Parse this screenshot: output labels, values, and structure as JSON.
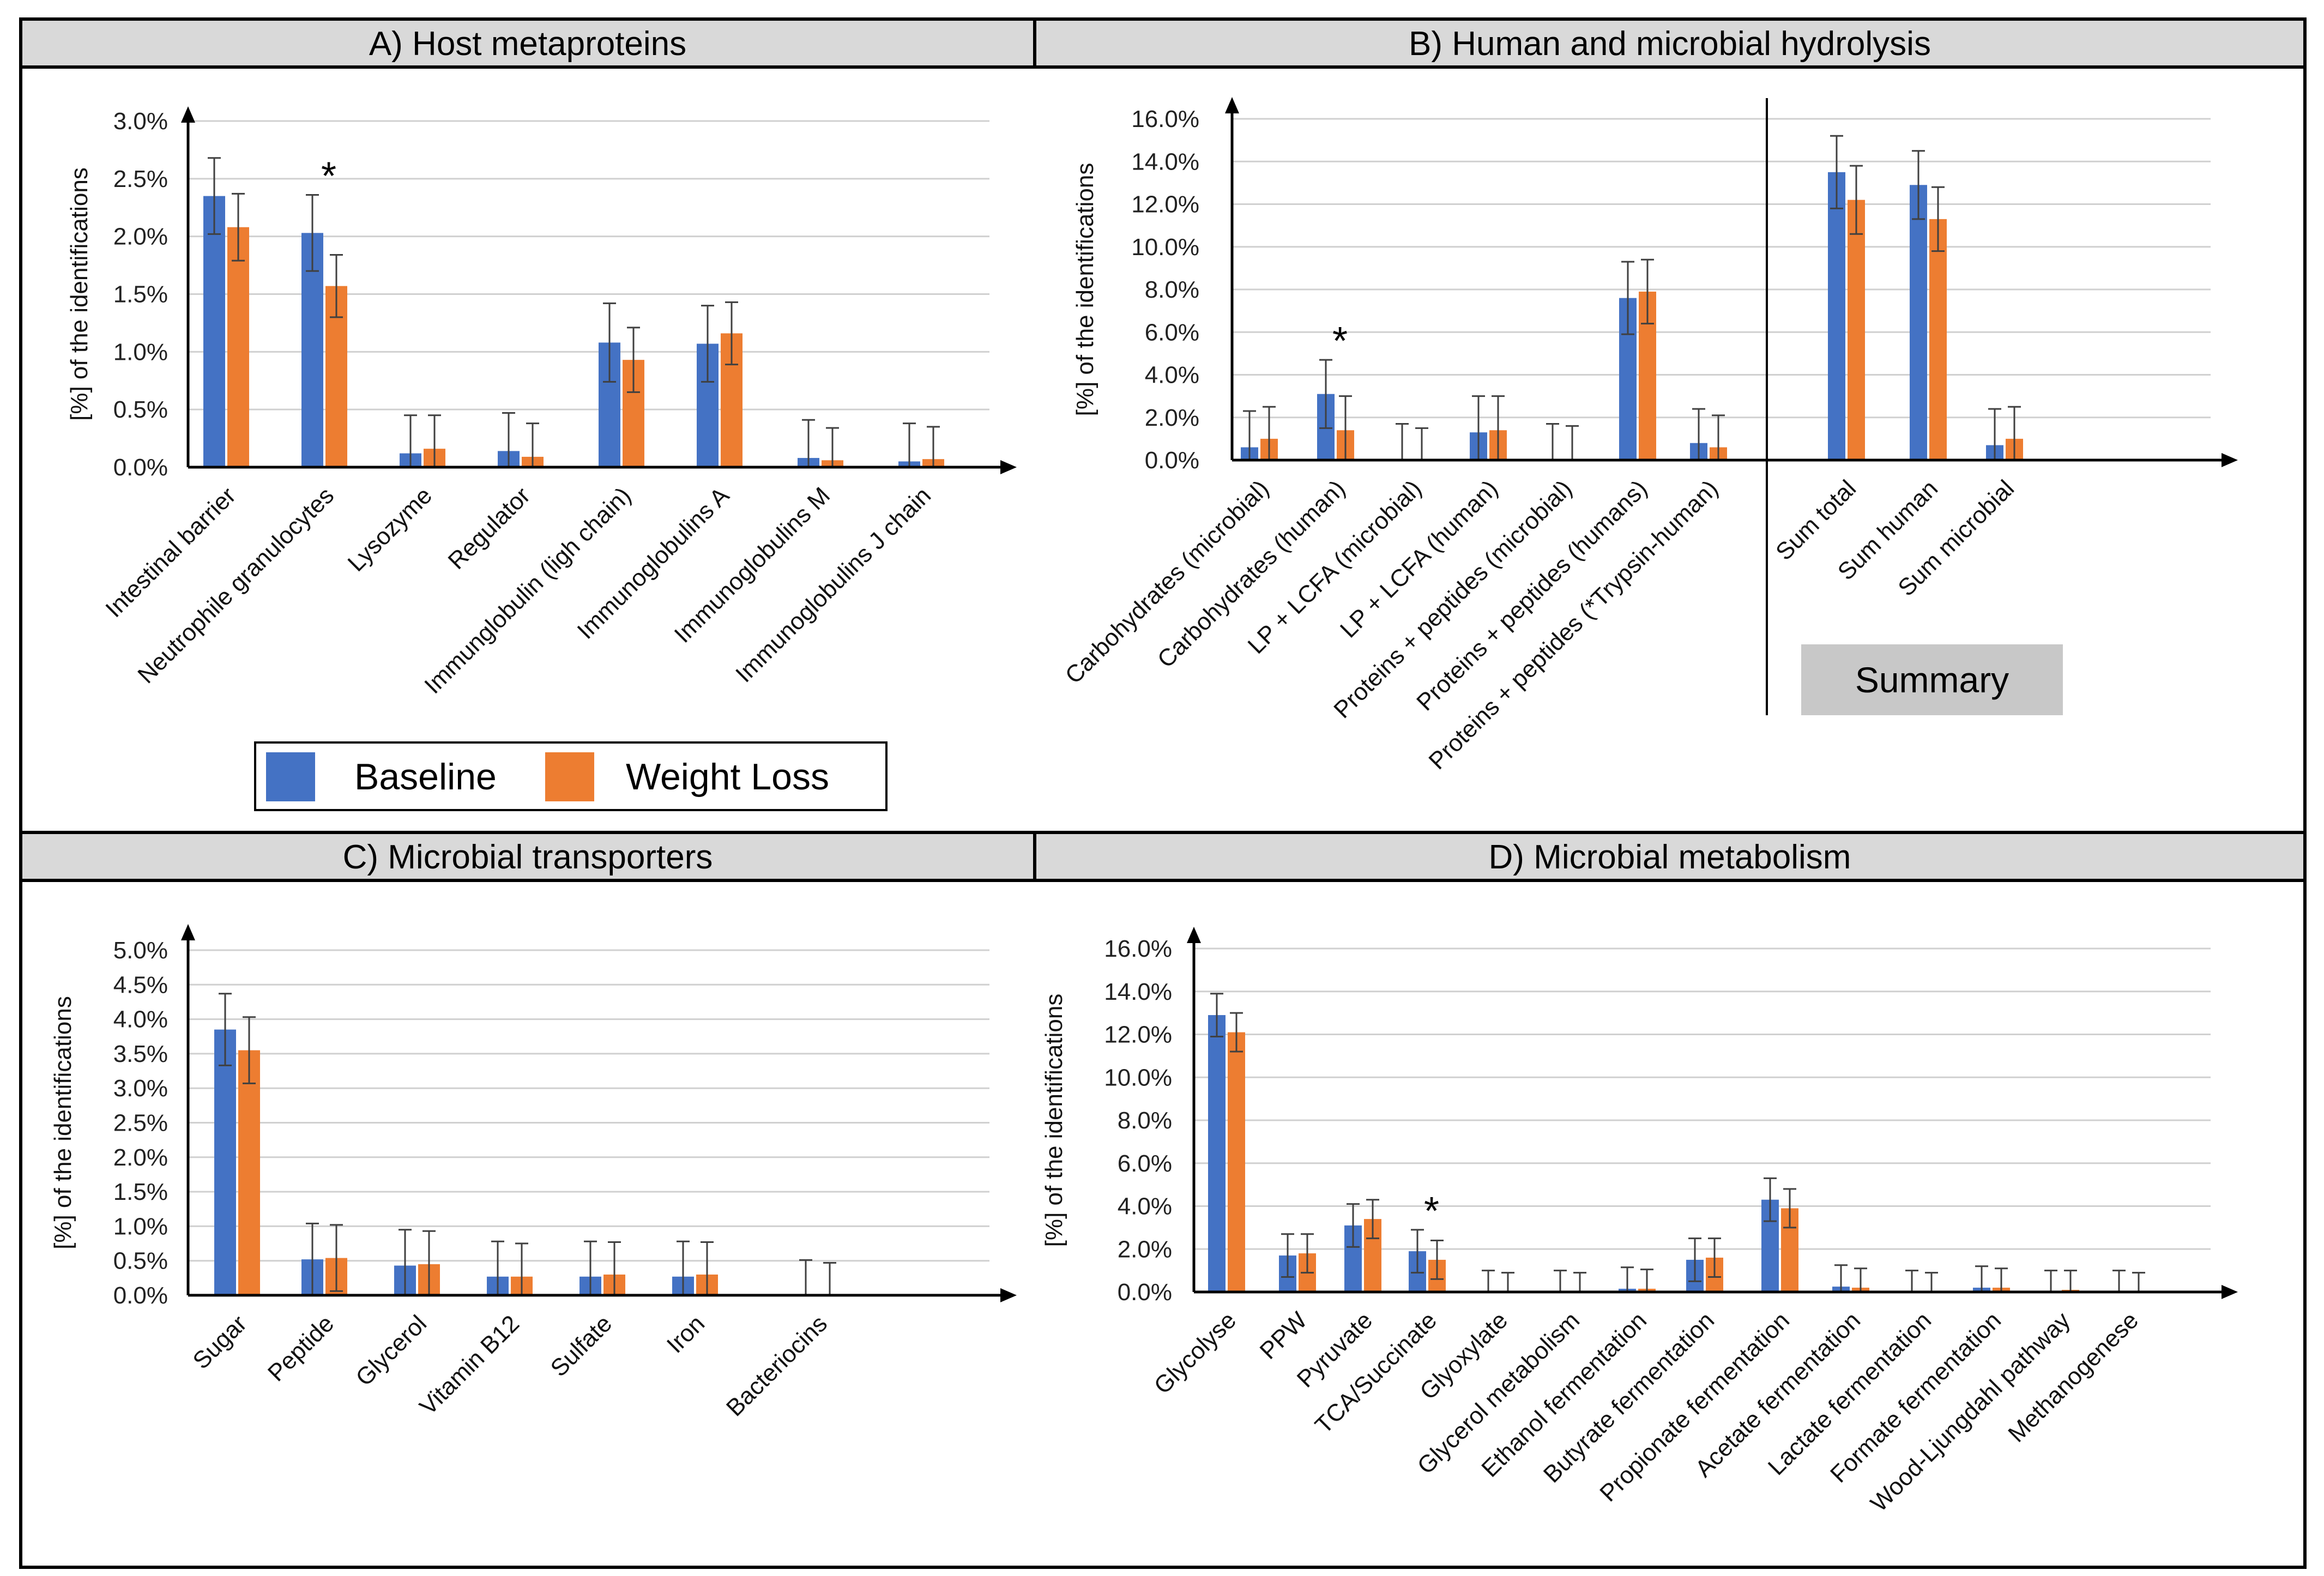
{
  "colors": {
    "baseline": "#4472C4",
    "weight_loss": "#ED7D31",
    "header_bg": "#D9D9D9",
    "grid": "#D0D0D0"
  },
  "legend": {
    "baseline": "Baseline",
    "weight_loss": "Weight Loss"
  },
  "summary_label": "Summary",
  "chart_data": [
    {
      "id": "A",
      "type": "bar",
      "title": "A) Host metaproteins",
      "ylabel": "[%] of the identifications",
      "xlabel": "",
      "ylim": [
        0,
        3.0
      ],
      "yticks": [
        "0.0%",
        "0.5%",
        "1.0%",
        "1.5%",
        "2.0%",
        "2.5%",
        "3.0%"
      ],
      "categories": [
        "Intestinal barrier",
        "Neutrophile granulocytes",
        "Lysozyme",
        "Regulator",
        "Immunglobulin (ligh chain)",
        "Immunoglobulins A",
        "Immunoglobulins M",
        "Immunoglobulins J chain"
      ],
      "series": [
        {
          "name": "Baseline",
          "values": [
            2.35,
            2.03,
            0.12,
            0.14,
            1.08,
            1.07,
            0.08,
            0.05
          ],
          "errors": [
            0.33,
            0.33,
            0.33,
            0.33,
            0.34,
            0.33,
            0.33,
            0.33
          ]
        },
        {
          "name": "Weight Loss",
          "values": [
            2.08,
            1.57,
            0.16,
            0.09,
            0.93,
            1.16,
            0.06,
            0.07
          ],
          "errors": [
            0.29,
            0.27,
            0.29,
            0.29,
            0.28,
            0.27,
            0.28,
            0.28
          ]
        }
      ],
      "significant": [
        1
      ]
    },
    {
      "id": "B",
      "type": "bar",
      "title": "B) Human and microbial hydrolysis",
      "ylabel": "[%] of the identifications",
      "xlabel": "",
      "ylim": [
        0,
        16.0
      ],
      "yticks": [
        "0.0%",
        "2.0%",
        "4.0%",
        "6.0%",
        "8.0%",
        "10.0%",
        "12.0%",
        "14.0%",
        "16.0%"
      ],
      "categories": [
        "Carbohydrates (microbial)",
        "Carbohydrates (human)",
        "LP + LCFA (microbial)",
        "LP + LCFA (human)",
        "Proteins + peptides  (microbial)",
        "Proteins + peptides  (humans)",
        "Proteins + peptides (*Trypsin-human)",
        "Sum total",
        "Sum human",
        "Sum microbial"
      ],
      "series": [
        {
          "name": "Baseline",
          "values": [
            0.6,
            3.1,
            0.0,
            1.3,
            0.0,
            7.6,
            0.8,
            13.5,
            12.9,
            0.7
          ],
          "errors": [
            1.7,
            1.6,
            1.7,
            1.7,
            1.7,
            1.7,
            1.6,
            1.7,
            1.6,
            1.7
          ]
        },
        {
          "name": "Weight Loss",
          "values": [
            1.0,
            1.4,
            0.0,
            1.4,
            0.0,
            7.9,
            0.6,
            12.2,
            11.3,
            1.0
          ],
          "errors": [
            1.5,
            1.6,
            1.5,
            1.6,
            1.6,
            1.5,
            1.5,
            1.6,
            1.5,
            1.5
          ]
        }
      ],
      "significant": [
        1
      ]
    },
    {
      "id": "C",
      "type": "bar",
      "title": "C) Microbial transporters",
      "ylabel": "[%] of the identifications",
      "xlabel": "",
      "ylim": [
        0,
        5.0
      ],
      "yticks": [
        "0.0%",
        "0.5%",
        "1.0%",
        "1.5%",
        "2.0%",
        "2.5%",
        "3.0%",
        "3.5%",
        "4.0%",
        "4.5%",
        "5.0%"
      ],
      "categories": [
        "Sugar",
        "Peptide",
        "Glycerol",
        "Vitamin B12",
        "Sulfate",
        "Iron",
        "Bacteriocins"
      ],
      "series": [
        {
          "name": "Baseline",
          "values": [
            3.85,
            0.52,
            0.43,
            0.27,
            0.27,
            0.27,
            0.0
          ],
          "errors": [
            0.52,
            0.52,
            0.52,
            0.51,
            0.51,
            0.51,
            0.51
          ]
        },
        {
          "name": "Weight Loss",
          "values": [
            3.55,
            0.54,
            0.45,
            0.27,
            0.3,
            0.3,
            0.0
          ],
          "errors": [
            0.48,
            0.48,
            0.48,
            0.48,
            0.47,
            0.47,
            0.47
          ]
        }
      ],
      "significant": []
    },
    {
      "id": "D",
      "type": "bar",
      "title": "D) Microbial metabolism",
      "ylabel": "[%] of the identifications",
      "xlabel": "",
      "ylim": [
        0,
        16.0
      ],
      "yticks": [
        "0.0%",
        "2.0%",
        "4.0%",
        "6.0%",
        "8.0%",
        "10.0%",
        "12.0%",
        "14.0%",
        "16.0%"
      ],
      "categories": [
        "Glycolyse",
        "PPW",
        "Pyruvate",
        "TCA/Succinate",
        "Glyoxylate",
        "Glycerol metabolism",
        "Ethanol fermentation",
        "Butyrate fermentation",
        "Propionate fermentation",
        "Acetate fermentation",
        "Lactate fermentation",
        "Formate fermentation",
        "Wood-Ljungdahl pathway",
        "Methanogenese"
      ],
      "series": [
        {
          "name": "Baseline",
          "values": [
            12.9,
            1.7,
            3.1,
            1.9,
            0.0,
            0.0,
            0.15,
            1.5,
            4.3,
            0.25,
            0.0,
            0.2,
            0.0,
            0.0
          ],
          "errors": [
            1.0,
            1.0,
            1.0,
            1.0,
            1.0,
            1.0,
            1.0,
            1.0,
            1.0,
            1.0,
            1.0,
            1.0,
            1.0,
            1.0
          ]
        },
        {
          "name": "Weight Loss",
          "values": [
            12.1,
            1.8,
            3.4,
            1.5,
            0.0,
            0.0,
            0.15,
            1.6,
            3.9,
            0.2,
            0.0,
            0.2,
            0.1,
            0.0
          ],
          "errors": [
            0.9,
            0.9,
            0.9,
            0.9,
            0.9,
            0.9,
            0.9,
            0.9,
            0.9,
            0.9,
            0.9,
            0.9,
            0.9,
            0.9
          ]
        }
      ],
      "significant": [
        3
      ]
    }
  ]
}
